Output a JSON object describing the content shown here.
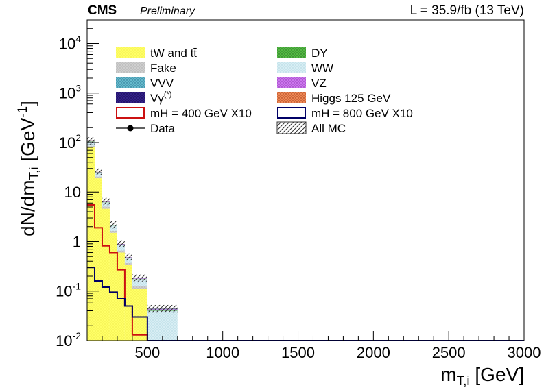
{
  "header": {
    "experiment": "CMS",
    "status": "Preliminary",
    "lumi": "L = 35.9/fb (13 TeV)"
  },
  "chart_data": {
    "type": "bar",
    "style": "stacked-histogram",
    "xlabel": "m_{T,i} [GeV]",
    "ylabel": "dN/dm_{T,i} [GeV^{-1}]",
    "xlim": [
      100,
      3000
    ],
    "ylim": [
      0.01,
      30000
    ],
    "y_scale": "log",
    "x_ticks": [
      500,
      1000,
      1500,
      2000,
      2500,
      3000
    ],
    "y_ticks": [
      {
        "value": 0.01,
        "base": "10",
        "exp": "-2"
      },
      {
        "value": 0.1,
        "base": "10",
        "exp": "-1"
      },
      {
        "value": 1,
        "base": "1",
        "exp": ""
      },
      {
        "value": 10,
        "base": "10",
        "exp": ""
      },
      {
        "value": 100,
        "base": "10",
        "exp": "2"
      },
      {
        "value": 1000,
        "base": "10",
        "exp": "3"
      },
      {
        "value": 10000,
        "base": "10",
        "exp": "4"
      }
    ],
    "bin_edges": [
      100,
      150,
      200,
      250,
      300,
      350,
      400,
      500,
      700,
      3000
    ],
    "stack": [
      {
        "key": "top",
        "name": "tW and tt̄",
        "color": "#ffff66",
        "values": [
          80,
          19,
          4.6,
          1.5,
          0.6,
          0.34,
          0.11,
          0.004,
          0
        ]
      },
      {
        "key": "fake",
        "name": "Fake",
        "color": "#c0c0c0",
        "values": [
          6,
          1.6,
          0.5,
          0.15,
          0.06,
          0.03,
          0.015,
          0.006,
          0
        ]
      },
      {
        "key": "ww",
        "name": "WW",
        "color": "#cce8f0",
        "values": [
          18,
          4,
          1.1,
          0.45,
          0.2,
          0.1,
          0.05,
          0.03,
          0
        ]
      },
      {
        "key": "dy",
        "name": "DY",
        "color": "#33aa33",
        "values": [
          2,
          0.3,
          0.08,
          0.02,
          0.01,
          0.005,
          0.002,
          0.001,
          0
        ]
      },
      {
        "key": "vz",
        "name": "VZ",
        "color": "#bb66dd",
        "values": [
          1,
          0.3,
          0.09,
          0.03,
          0.015,
          0.008,
          0.004,
          0.002,
          0
        ]
      },
      {
        "key": "vvv",
        "name": "VVV",
        "color": "#55aacc",
        "values": [
          0.3,
          0.08,
          0.02,
          0.008,
          0.004,
          0.002,
          0.001,
          0.0008,
          0
        ]
      },
      {
        "key": "vgamma",
        "name": "Vγ",
        "name_sup": "(*)",
        "color": "#221177",
        "values": [
          0.5,
          0.12,
          0.03,
          0.01,
          0.005,
          0.002,
          0.001,
          0.0005,
          0
        ]
      },
      {
        "key": "higgs",
        "name": "Higgs 125 GeV",
        "color": "#dd6633",
        "values": [
          0.5,
          0.1,
          0.02,
          0.006,
          0.003,
          0.001,
          0.0005,
          0.0002,
          0
        ]
      }
    ],
    "lines": [
      {
        "key": "mh400",
        "name": "mH = 400 GeV X10",
        "color": "#cc1111",
        "values": [
          5.5,
          1.9,
          0.82,
          0.6,
          0.27,
          0.05,
          0.013,
          0.01,
          0.01
        ]
      },
      {
        "key": "mh800",
        "name": "mH = 800 GeV X10",
        "color": "#000066",
        "values": [
          0.3,
          0.16,
          0.12,
          0.095,
          0.07,
          0.05,
          0.03,
          0.01,
          0.01
        ]
      }
    ],
    "data_series": {
      "name": "Data"
    },
    "mc_total": {
      "name": "All MC"
    },
    "legend": {
      "placement": "top-left",
      "columns": 2
    }
  }
}
